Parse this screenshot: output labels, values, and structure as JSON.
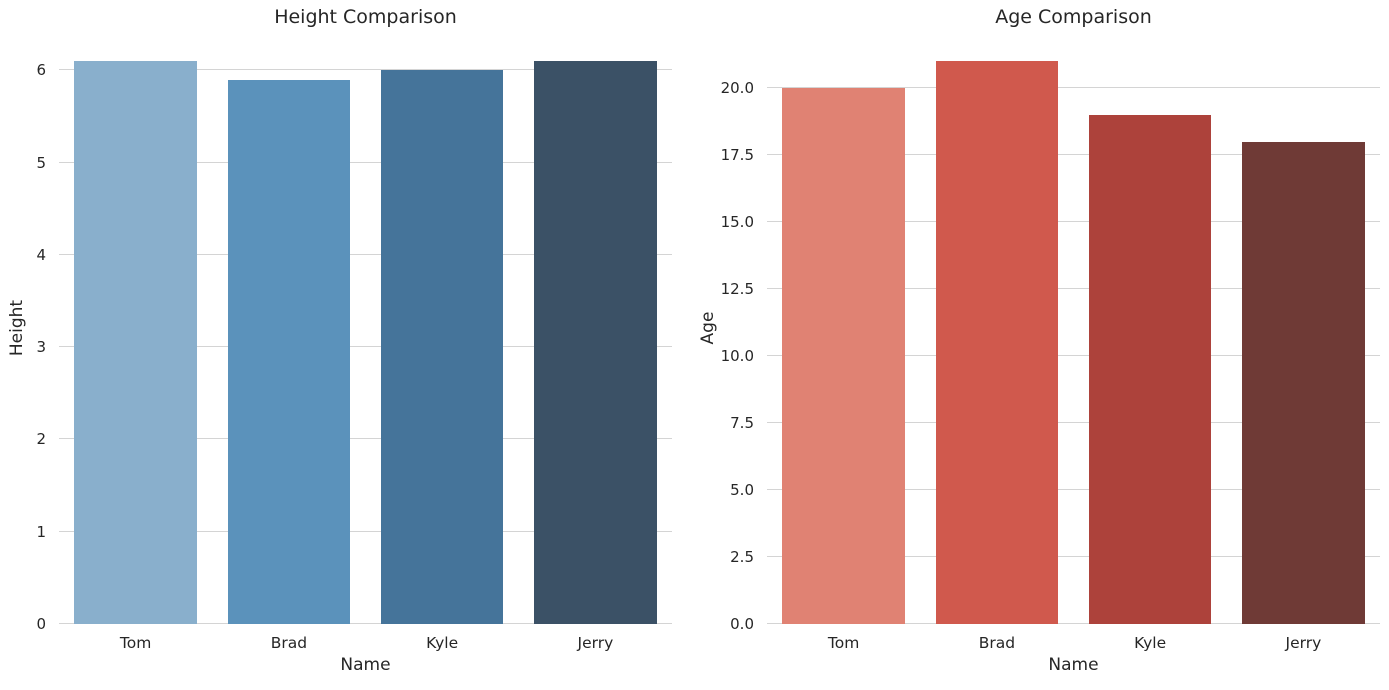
{
  "figure": {
    "background": "#ffffff",
    "text_color": "#262626",
    "grid_color": "#d4d4d4",
    "grid": "horizontal",
    "legend": "none"
  },
  "chart_data": [
    {
      "type": "bar",
      "title": "Height Comparison",
      "xlabel": "Name",
      "ylabel": "Height",
      "categories": [
        "Tom",
        "Brad",
        "Kyle",
        "Jerry"
      ],
      "values": [
        6.1,
        5.9,
        6.0,
        6.1
      ],
      "ylim": [
        0,
        6.405
      ],
      "yticks": [
        {
          "value": 0,
          "label": "0"
        },
        {
          "value": 1,
          "label": "1"
        },
        {
          "value": 2,
          "label": "2"
        },
        {
          "value": 3,
          "label": "3"
        },
        {
          "value": 4,
          "label": "4"
        },
        {
          "value": 5,
          "label": "5"
        },
        {
          "value": 6,
          "label": "6"
        }
      ],
      "bar_colors": [
        "#89afcc",
        "#5b92bb",
        "#45749a",
        "#3b5166"
      ],
      "bar_width_fraction": 0.8
    },
    {
      "type": "bar",
      "title": "Age Comparison",
      "xlabel": "Name",
      "ylabel": "Age",
      "categories": [
        "Tom",
        "Brad",
        "Kyle",
        "Jerry"
      ],
      "values": [
        20,
        21,
        19,
        18
      ],
      "ylim": [
        0,
        22.05
      ],
      "yticks": [
        {
          "value": 0,
          "label": "0.0"
        },
        {
          "value": 2.5,
          "label": "2.5"
        },
        {
          "value": 5,
          "label": "5.0"
        },
        {
          "value": 7.5,
          "label": "7.5"
        },
        {
          "value": 10,
          "label": "10.0"
        },
        {
          "value": 12.5,
          "label": "12.5"
        },
        {
          "value": 15,
          "label": "15.0"
        },
        {
          "value": 17.5,
          "label": "17.5"
        },
        {
          "value": 20,
          "label": "20.0"
        }
      ],
      "bar_colors": [
        "#e08273",
        "#d0594d",
        "#ad423b",
        "#6f3a36"
      ],
      "bar_width_fraction": 0.8
    }
  ]
}
